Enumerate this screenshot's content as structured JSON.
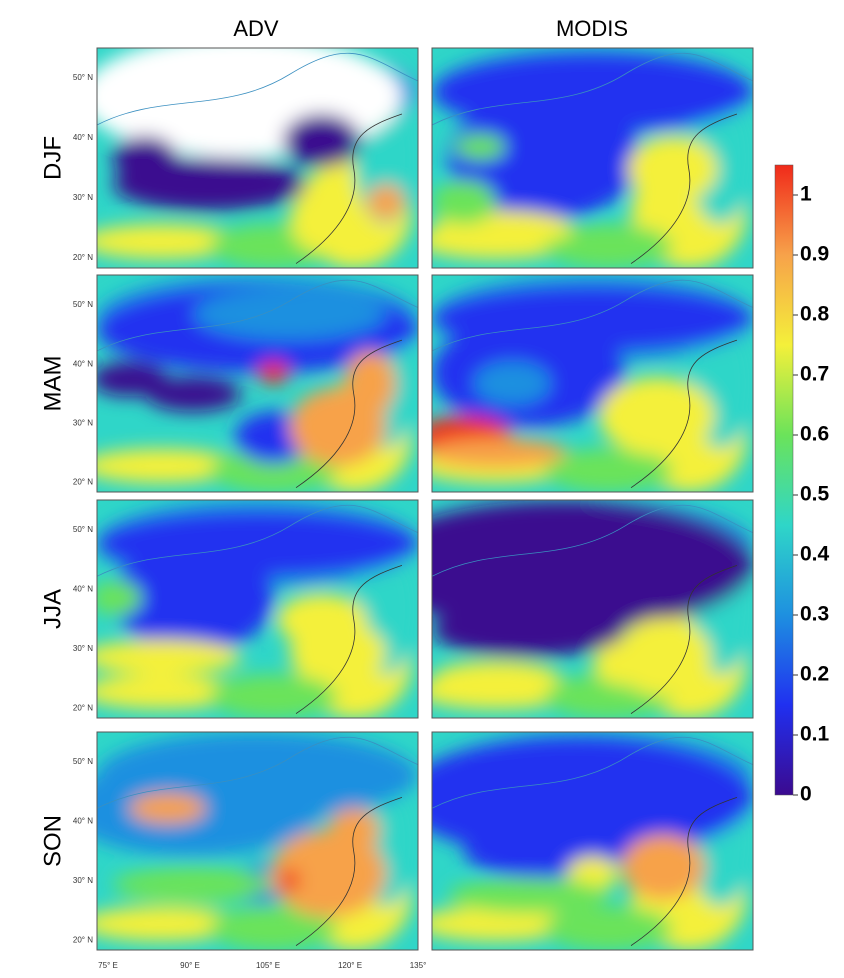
{
  "columns": [
    "ADV",
    "MODIS"
  ],
  "rows": [
    "DJF",
    "MAM",
    "JJA",
    "SON"
  ],
  "lat_labels": [
    "50° N",
    "40° N",
    "30° N",
    "20° N"
  ],
  "lon_labels": [
    "75° E",
    "90° E",
    "105° E",
    "120° E",
    "135°"
  ],
  "colorbar": {
    "range": [
      0,
      1.05
    ],
    "ticks": [
      0,
      0.1,
      0.2,
      0.3,
      0.4,
      0.5,
      0.6,
      0.7,
      0.8,
      0.9,
      1
    ],
    "colors": [
      "#3b0a8f",
      "#2030f0",
      "#1e90e0",
      "#2fd6c8",
      "#6be35a",
      "#f4f03a",
      "#f7a24a",
      "#f02a1a"
    ]
  }
}
